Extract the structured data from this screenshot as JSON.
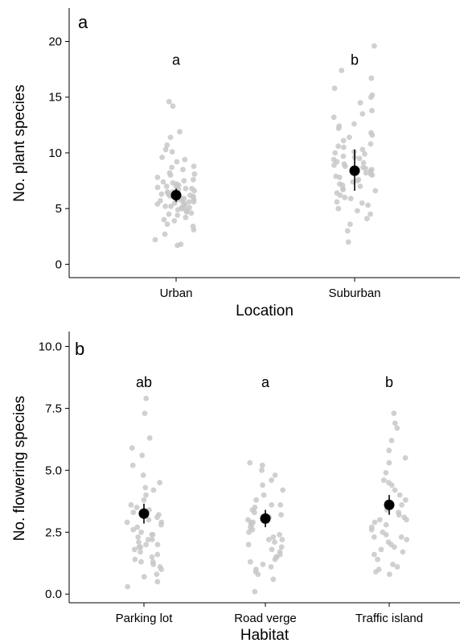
{
  "chart_data": [
    {
      "type": "scatter",
      "panel": "a",
      "xlabel": "Location",
      "ylabel": "No. plant species",
      "categories": [
        "Urban",
        "Suburban"
      ],
      "ylim": [
        -1.2,
        23
      ],
      "yticks": [
        0,
        5,
        10,
        15,
        20
      ],
      "ytick_labels": [
        "0",
        "5",
        "10",
        "15",
        "20"
      ],
      "grid": false,
      "means": [
        6.2,
        8.4
      ],
      "err_low": [
        5.6,
        6.6
      ],
      "err_high": [
        6.8,
        10.3
      ],
      "significance": [
        "a",
        "b"
      ],
      "sig_y": [
        17.9,
        17.9
      ],
      "points": [
        [
          2.2,
          3.1,
          3.6,
          4.0,
          4.2,
          4.4,
          4.5,
          4.7,
          4.8,
          4.9,
          5.0,
          5.0,
          5.1,
          5.2,
          5.2,
          5.3,
          5.4,
          5.4,
          5.5,
          5.5,
          5.6,
          5.6,
          5.7,
          5.8,
          5.8,
          5.9,
          5.9,
          6.0,
          6.0,
          6.1,
          6.1,
          6.2,
          6.2,
          6.3,
          6.3,
          6.4,
          6.5,
          6.5,
          6.6,
          6.7,
          6.8,
          6.8,
          6.9,
          7.0,
          7.1,
          7.2,
          7.3,
          7.4,
          7.6,
          7.8,
          8.0,
          8.2,
          8.5,
          8.8,
          9.2,
          9.6,
          10.1,
          10.7,
          11.4,
          14.2,
          14.6,
          1.7,
          1.8,
          2.7,
          3.4,
          3.9,
          4.6,
          5.1,
          5.7,
          6.4,
          7.0,
          7.5,
          8.1,
          8.7,
          9.4,
          10.3,
          11.9
        ],
        [
          2.0,
          3.0,
          3.6,
          4.1,
          4.5,
          5.0,
          5.3,
          5.6,
          5.9,
          6.2,
          6.4,
          6.6,
          6.8,
          7.0,
          7.2,
          7.4,
          7.6,
          7.8,
          8.0,
          8.1,
          8.3,
          8.4,
          8.5,
          8.6,
          8.8,
          8.9,
          9.0,
          9.2,
          9.4,
          9.5,
          9.7,
          9.9,
          10.1,
          10.3,
          10.5,
          10.8,
          11.1,
          11.4,
          11.8,
          12.2,
          12.6,
          13.2,
          13.8,
          14.5,
          15.2,
          15.8,
          16.7,
          17.4,
          19.6,
          4.8,
          5.5,
          6.0,
          6.7,
          7.1,
          7.5,
          7.9,
          8.2,
          8.7,
          9.1,
          9.6,
          10.0,
          10.6,
          11.6,
          12.4,
          13.5,
          15.0
        ]
      ]
    },
    {
      "type": "scatter",
      "panel": "b",
      "xlabel": "Habitat",
      "ylabel": "No. flowering species",
      "categories": [
        "Parking lot",
        "Road verge",
        "Traffic island"
      ],
      "ylim": [
        -0.35,
        10.6
      ],
      "yticks": [
        0,
        2.5,
        5,
        7.5,
        10
      ],
      "ytick_labels": [
        "0.0",
        "2.5",
        "5.0",
        "7.5",
        "10.0"
      ],
      "grid": false,
      "means": [
        3.25,
        3.05,
        3.6
      ],
      "err_low": [
        2.85,
        2.7,
        3.2
      ],
      "err_high": [
        3.65,
        3.4,
        4.0
      ],
      "significance": [
        "ab",
        "a",
        "b"
      ],
      "sig_y": [
        8.35,
        8.35,
        8.35
      ],
      "points": [
        [
          0.3,
          0.5,
          0.8,
          1.0,
          1.1,
          1.2,
          1.3,
          1.4,
          1.5,
          1.6,
          1.7,
          1.8,
          1.9,
          2.0,
          2.0,
          2.1,
          2.2,
          2.2,
          2.3,
          2.4,
          2.5,
          2.6,
          2.7,
          2.8,
          2.9,
          3.0,
          3.1,
          3.2,
          3.3,
          3.4,
          3.6,
          3.8,
          4.0,
          4.2,
          4.5,
          4.8,
          5.2,
          5.6,
          5.9,
          6.3,
          7.3,
          7.9,
          0.7,
          1.3,
          1.9,
          2.4,
          2.9,
          3.5,
          4.3
        ],
        [
          0.1,
          0.6,
          0.8,
          1.0,
          1.1,
          1.2,
          1.3,
          1.4,
          1.5,
          1.6,
          1.7,
          1.8,
          1.9,
          2.0,
          2.1,
          2.2,
          2.3,
          2.4,
          2.5,
          2.6,
          2.7,
          2.8,
          2.9,
          3.0,
          3.1,
          3.2,
          3.3,
          3.4,
          3.5,
          3.6,
          3.8,
          4.0,
          4.2,
          4.4,
          4.6,
          4.8,
          5.0,
          5.2,
          5.3,
          0.9,
          1.5,
          2.2,
          2.9,
          3.6
        ],
        [
          0.8,
          0.9,
          1.0,
          1.2,
          1.4,
          1.6,
          1.8,
          1.9,
          2.0,
          2.1,
          2.2,
          2.3,
          2.4,
          2.5,
          2.6,
          2.7,
          2.8,
          2.9,
          3.0,
          3.1,
          3.2,
          3.3,
          3.4,
          3.6,
          3.8,
          4.0,
          4.2,
          4.4,
          4.6,
          4.9,
          5.3,
          5.8,
          6.2,
          6.7,
          6.9,
          7.3,
          1.1,
          1.7,
          2.3,
          3.0,
          3.7,
          4.5,
          5.5
        ]
      ]
    }
  ]
}
